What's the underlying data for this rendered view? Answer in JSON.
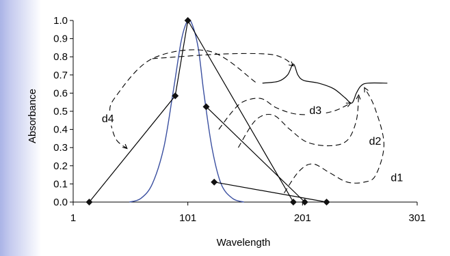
{
  "chart_data": {
    "type": "line",
    "xlabel": "Wavelength",
    "ylabel": "Absorbance",
    "xlim": [
      1,
      301
    ],
    "ylim": [
      0,
      1.0
    ],
    "x_ticks": [
      1,
      101,
      201,
      301
    ],
    "x_tick_labels": [
      "1",
      "101",
      "201",
      "301"
    ],
    "y_ticks": [
      0,
      0.1,
      0.2,
      0.3,
      0.4,
      0.5,
      0.6,
      0.7,
      0.8,
      0.9,
      1.0
    ],
    "y_tick_labels": [
      "0.0",
      "0.1",
      "0.2",
      "0.3",
      "0.4",
      "0.5",
      "0.6",
      "0.7",
      "0.8",
      "0.9",
      "1.0"
    ],
    "grid": false,
    "spectrum": {
      "color": "#3a4fa0",
      "points": [
        [
          50,
          0
        ],
        [
          60,
          0.02
        ],
        [
          70,
          0.1
        ],
        [
          80,
          0.3
        ],
        [
          88,
          0.6
        ],
        [
          95,
          0.88
        ],
        [
          100,
          0.99
        ],
        [
          104,
          0.99
        ],
        [
          110,
          0.85
        ],
        [
          115,
          0.6
        ],
        [
          122,
          0.3
        ],
        [
          130,
          0.1
        ],
        [
          140,
          0.02
        ],
        [
          150,
          0
        ]
      ]
    },
    "transform_lines": [
      {
        "points": [
          [
            15,
            0
          ],
          [
            90,
            0.585
          ]
        ]
      },
      {
        "points": [
          [
            90,
            0.585
          ],
          [
            101,
            1.0
          ]
        ]
      },
      {
        "points": [
          [
            101,
            1.0
          ],
          [
            193,
            0
          ]
        ]
      },
      {
        "points": [
          [
            117,
            0.525
          ],
          [
            203,
            0
          ]
        ]
      },
      {
        "points": [
          [
            124,
            0.11
          ],
          [
            222,
            0
          ]
        ]
      }
    ],
    "markers": [
      [
        15,
        0
      ],
      [
        90,
        0.585
      ],
      [
        101,
        1.0
      ],
      [
        117,
        0.525
      ],
      [
        124,
        0.11
      ],
      [
        193,
        0
      ],
      [
        203,
        0
      ],
      [
        222,
        0
      ]
    ],
    "warped_spectrum": {
      "points": [
        [
          166,
          0.655
        ],
        [
          180,
          0.665
        ],
        [
          188,
          0.7
        ],
        [
          193,
          0.76
        ],
        [
          197,
          0.7
        ],
        [
          202,
          0.67
        ],
        [
          215,
          0.655
        ],
        [
          228,
          0.625
        ],
        [
          238,
          0.575
        ],
        [
          244,
          0.545
        ],
        [
          248,
          0.6
        ],
        [
          252,
          0.64
        ],
        [
          258,
          0.655
        ],
        [
          275,
          0.655
        ]
      ]
    },
    "dashed_arrows": [
      {
        "label": "d4",
        "points": [
          [
            160,
            0.66
          ],
          [
            120,
            0.83
          ],
          [
            70,
            0.79
          ],
          [
            38,
            0.58
          ],
          [
            33,
            0.48
          ],
          [
            38,
            0.35
          ],
          [
            48,
            0.295
          ]
        ]
      },
      {
        "label": "d4-arrow",
        "points": [
          [
            70,
            0.79
          ],
          [
            130,
            0.815
          ],
          [
            170,
            0.815
          ],
          [
            185,
            0.79
          ],
          [
            193,
            0.75
          ]
        ]
      },
      {
        "label": "d3",
        "points": [
          [
            128,
            0.4
          ],
          [
            140,
            0.5
          ],
          [
            150,
            0.555
          ],
          [
            165,
            0.57
          ],
          [
            178,
            0.52
          ],
          [
            195,
            0.485
          ],
          [
            215,
            0.485
          ],
          [
            230,
            0.505
          ],
          [
            243,
            0.545
          ]
        ]
      },
      {
        "label": "d2",
        "points": [
          [
            145,
            0.3
          ],
          [
            160,
            0.45
          ],
          [
            175,
            0.48
          ],
          [
            190,
            0.4
          ],
          [
            205,
            0.33
          ],
          [
            225,
            0.31
          ],
          [
            240,
            0.34
          ],
          [
            248,
            0.45
          ],
          [
            250,
            0.59
          ]
        ]
      },
      {
        "label": "d1",
        "points": [
          [
            185,
            0.05
          ],
          [
            198,
            0.17
          ],
          [
            210,
            0.21
          ],
          [
            225,
            0.16
          ],
          [
            240,
            0.11
          ],
          [
            255,
            0.11
          ],
          [
            265,
            0.15
          ],
          [
            272,
            0.32
          ],
          [
            264,
            0.52
          ],
          [
            255,
            0.63
          ]
        ]
      }
    ],
    "annotations": [
      {
        "text": "d4",
        "x": 26,
        "y": 0.44
      },
      {
        "text": "d3",
        "x": 207,
        "y": 0.485
      },
      {
        "text": "d2",
        "x": 259,
        "y": 0.315
      },
      {
        "text": "d1",
        "x": 278,
        "y": 0.115
      }
    ]
  }
}
